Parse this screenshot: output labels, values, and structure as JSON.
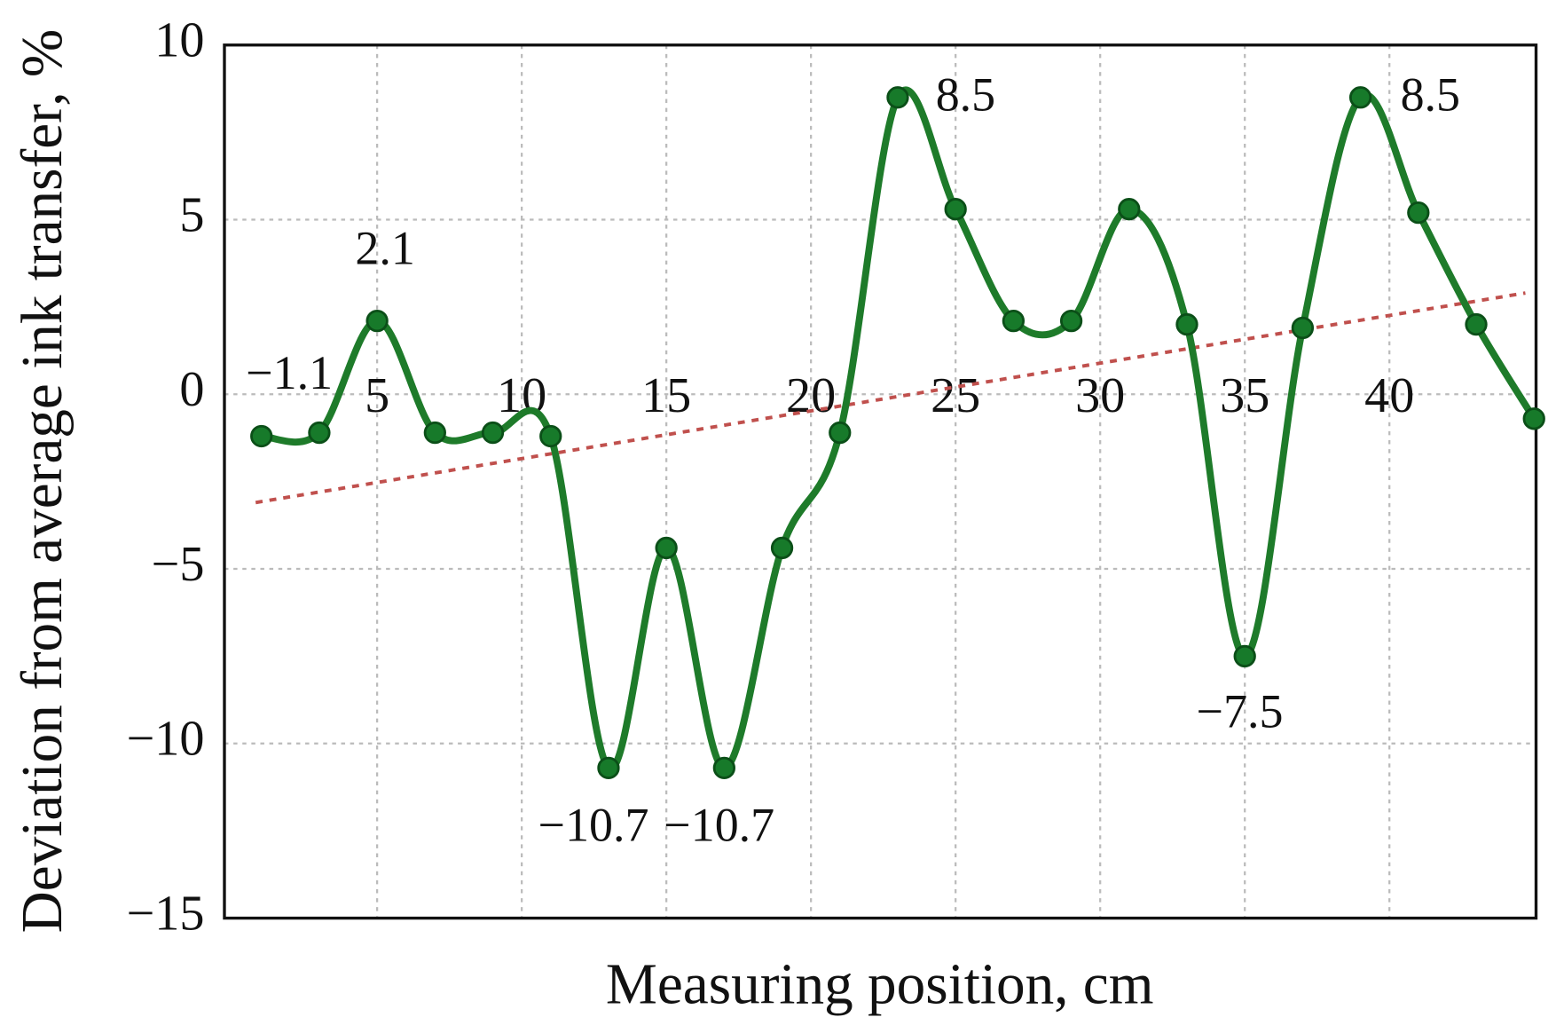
{
  "chart_data": {
    "type": "line",
    "x_label": "Measuring position, cm",
    "y_label": "Deviation from average ink transfer, %",
    "xlim": [
      -0.28,
      45.07
    ],
    "ylim": [
      -15,
      10
    ],
    "xticks": [
      5,
      10,
      15,
      20,
      25,
      30,
      35,
      40
    ],
    "yticks": [
      {
        "value": -15,
        "label": "−15"
      },
      {
        "value": -10,
        "label": "−10"
      },
      {
        "value": -5,
        "label": "−5"
      },
      0,
      5,
      10
    ],
    "grid": true,
    "x": [
      1,
      3,
      5,
      7,
      9,
      11,
      13,
      15,
      17,
      19,
      21,
      23,
      25,
      27,
      29,
      31,
      33,
      35,
      37,
      39,
      41,
      43,
      45
    ],
    "series": [
      {
        "color": "#1e7b2a",
        "values": [
          -1.2,
          -1.1,
          2.1,
          -1.1,
          -1.1,
          -1.2,
          -10.7,
          -4.4,
          -10.7,
          -4.4,
          -1.1,
          8.5,
          5.3,
          2.1,
          2.1,
          5.3,
          2.0,
          -7.5,
          1.9,
          8.5,
          5.2,
          2.0,
          -0.7
        ],
        "value_labels": [
          null,
          "−1.1",
          "2.1",
          null,
          null,
          null,
          "−10.7",
          null,
          "−10.7",
          null,
          null,
          "8.5",
          null,
          null,
          null,
          null,
          null,
          "−7.5",
          null,
          "8.5",
          null,
          null,
          null
        ]
      }
    ],
    "trend": {
      "color": "#c0504d",
      "x": [
        0.8,
        44.7
      ],
      "values": [
        -3.1,
        2.9
      ]
    }
  }
}
